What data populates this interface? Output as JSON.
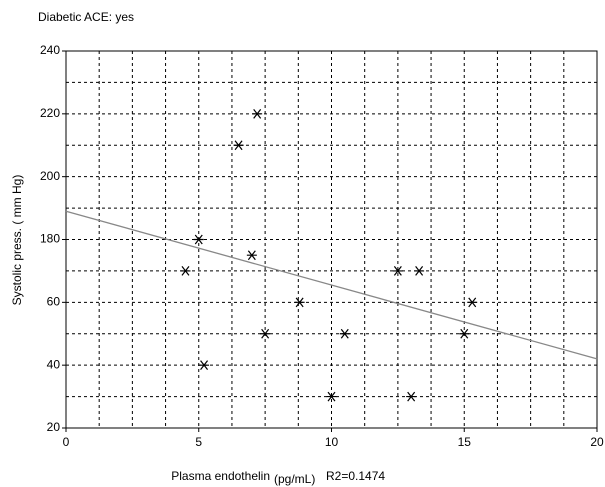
{
  "chart_data": {
    "type": "scatter",
    "title": "Diabetic ACE: yes",
    "ylabel": "Systolic press.  ( mm Hg)",
    "xlabel": "Plasma endothelin",
    "xlabel_unit": "(pg/mL)",
    "annotation": "R2=0.1474",
    "xlim": [
      0,
      20
    ],
    "ylim": [
      120,
      240
    ],
    "xticks": [
      0,
      5,
      10,
      15,
      20
    ],
    "yticks": [
      {
        "value": 120,
        "label": "20"
      },
      {
        "value": 140,
        "label": "40"
      },
      {
        "value": 160,
        "label": "60"
      },
      180,
      200,
      220,
      240
    ],
    "xgrid": [
      1.25,
      2.5,
      3.75,
      5,
      6.25,
      7.5,
      8.75,
      10,
      11.25,
      12.5,
      13.75,
      15,
      16.25,
      17.5,
      18.75
    ],
    "ygrid": [
      130,
      140,
      150,
      160,
      170,
      180,
      190,
      200,
      210,
      220,
      230
    ],
    "grid": true,
    "color": "#000000",
    "x": [
      7.2,
      6.5,
      5,
      7,
      4.5,
      12.5,
      13.3,
      8.8,
      15.3,
      7.5,
      10.5,
      15,
      5.2,
      10,
      13
    ],
    "y": [
      220,
      210,
      180,
      175,
      170,
      170,
      170,
      160,
      160,
      150,
      150,
      150,
      140,
      130,
      130
    ],
    "fit": {
      "x": [
        0,
        20
      ],
      "y": [
        189,
        142
      ],
      "color": "#888888"
    }
  }
}
